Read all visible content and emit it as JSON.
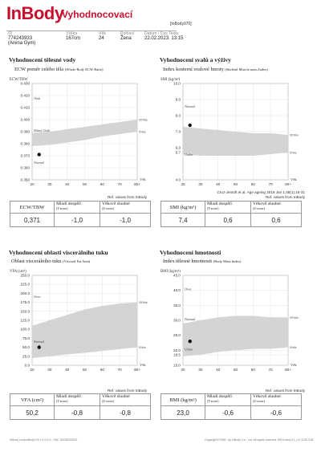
{
  "header": {
    "logo": "InBody",
    "title": "Vyhodnocovací",
    "model": "[InBody970]",
    "fields": [
      {
        "label": "ID",
        "value": "774243933",
        "extra": "(Arena Gym)"
      },
      {
        "label": "Výška",
        "value": "167cm"
      },
      {
        "label": "Věk",
        "value": "24"
      },
      {
        "label": "Pohlaví",
        "value": "Žena"
      },
      {
        "label": "Datum / Čas Testu",
        "value": "22.02.2023. 13:15"
      }
    ]
  },
  "sections": {
    "ecw": {
      "title": "Vyhodnocení tělesné vody",
      "subtitle": "ECW poměr celého těla",
      "subtitle_en": "(Whole Body ECW Ratio)",
      "table": {
        "col1": "ECW/TBW",
        "col2": "Mladí dospělí",
        "col2_en": "(T-score)",
        "col3": "Věkově shodné",
        "col3_en": "(Z-score)",
        "v1": "0,371",
        "v2": "-1,0",
        "v3": "-1,0"
      },
      "ref": "Ref. values from InBody"
    },
    "smi": {
      "title": "Vyhodnocení svalů a výživy",
      "subtitle": "Index kosterní svalové hmoty",
      "subtitle_en": "(Skeletal Muscle mass Index)",
      "citation": "Cruz-Jentoft et al. Age ageing 2019 Jan 1;48(1):16-31",
      "table": {
        "col1": "SMI (kg/m²)",
        "col2": "Mladí dospělí",
        "col2_en": "(T-score)",
        "col3": "Věkově shodné",
        "col3_en": "(Z-score)",
        "v1": "7,4",
        "v2": "0,6",
        "v3": "0,6"
      },
      "ref": "Ref. values from InBody"
    },
    "vfa": {
      "title": "Vyhodnocení oblasti viscerálního tuku",
      "subtitle": "Oblast viscerálního tuku",
      "subtitle_en": "(Visceral Fat Area)",
      "table": {
        "col1": "VFA (cm²)",
        "col2": "Mladí dospělí",
        "col2_en": "(T-score)",
        "col3": "Věkově shodné",
        "col3_en": "(Z-score)",
        "v1": "50,2",
        "v2": "-0,8",
        "v3": "-0,8"
      },
      "ref": "Ref. values from InBody"
    },
    "bmi": {
      "title": "Vyhodnocení hmotnosti",
      "subtitle": "Index tělesné hmotnosti",
      "subtitle_en": "(Body Mass Index)",
      "table": {
        "col1": "BMI (kg/m²)",
        "col2": "Mladí dospělí",
        "col2_en": "(T-score)",
        "col3": "Věkově shodné",
        "col3_en": "(Z-score)",
        "v1": "23,0",
        "v2": "-0,6",
        "v3": "-0,6"
      },
      "ref": "Ref. values from InBody"
    }
  },
  "chart_data": [
    {
      "type": "area",
      "ylabel": "ECW/TBW",
      "xlabel": "Věk",
      "x_ticks": [
        "20",
        "30",
        "40",
        "50",
        "60",
        "70",
        "80+"
      ],
      "y_ticks": [
        "0.350",
        "0.360",
        "0.370",
        "0.380",
        "0.390",
        "0.400",
        "0.410",
        "0.420",
        "0.430"
      ],
      "ylim": [
        0.35,
        0.43
      ],
      "zones": [
        "Otok",
        "Mírný Otok",
        "Normal"
      ],
      "band_labels": [
        "50%ile",
        "5%ile"
      ],
      "band_upper": [
        [
          20,
          0.389
        ],
        [
          30,
          0.39
        ],
        [
          40,
          0.392
        ],
        [
          50,
          0.394
        ],
        [
          60,
          0.396
        ],
        [
          70,
          0.398
        ],
        [
          80,
          0.4
        ]
      ],
      "band_lower": [
        [
          20,
          0.378
        ],
        [
          30,
          0.379
        ],
        [
          40,
          0.381
        ],
        [
          50,
          0.383
        ],
        [
          60,
          0.386
        ],
        [
          70,
          0.388
        ],
        [
          80,
          0.39
        ]
      ],
      "point": {
        "x": 24,
        "y": 0.371
      }
    },
    {
      "type": "area",
      "ylabel": "SMI (kg/m²)",
      "xlabel": "Věk",
      "x_ticks": [
        "20",
        "30",
        "40",
        "50",
        "60",
        "70",
        "80+"
      ],
      "y_ticks": [
        "4.0",
        "5.7",
        "6.0",
        "7.0",
        "8.0",
        "9.0",
        "10.0"
      ],
      "ylim": [
        4.0,
        10.0
      ],
      "zones": [
        "Normal",
        "Under"
      ],
      "band_labels": [
        "95%ile",
        "5%ile"
      ],
      "band_upper": [
        [
          20,
          7.3
        ],
        [
          30,
          7.2
        ],
        [
          40,
          7.1
        ],
        [
          50,
          7.0
        ],
        [
          60,
          6.9
        ],
        [
          70,
          6.9
        ],
        [
          80,
          6.8
        ]
      ],
      "band_lower": [
        [
          20,
          5.6
        ],
        [
          30,
          5.5
        ],
        [
          40,
          5.5
        ],
        [
          50,
          5.5
        ],
        [
          60,
          5.5
        ],
        [
          70,
          5.6
        ],
        [
          80,
          5.7
        ]
      ],
      "point": {
        "x": 24,
        "y": 7.4
      }
    },
    {
      "type": "area",
      "ylabel": "VFA (cm²)",
      "xlabel": "Věk",
      "x_ticks": [
        "20",
        "30",
        "40",
        "50",
        "60",
        "70",
        "80+"
      ],
      "y_ticks": [
        "0.0",
        "25.0",
        "50.0",
        "75.0",
        "100.0",
        "125.0",
        "150.0",
        "175.0",
        "200.0",
        "225.0",
        "250.0"
      ],
      "ylim": [
        0,
        250
      ],
      "zones": [
        "Over",
        "Normal"
      ],
      "band_labels": [
        "95%ile",
        "5%ile"
      ],
      "band_upper": [
        [
          20,
          110
        ],
        [
          30,
          125
        ],
        [
          40,
          140
        ],
        [
          50,
          155
        ],
        [
          60,
          165
        ],
        [
          70,
          172
        ],
        [
          80,
          175
        ]
      ],
      "band_lower": [
        [
          20,
          20
        ],
        [
          30,
          25
        ],
        [
          40,
          30
        ],
        [
          50,
          35
        ],
        [
          60,
          40
        ],
        [
          70,
          45
        ],
        [
          80,
          50
        ]
      ],
      "point": {
        "x": 24,
        "y": 50.2
      }
    },
    {
      "type": "area",
      "ylabel": "BMI (kg/m²)",
      "xlabel": "Věk",
      "x_ticks": [
        "20",
        "30",
        "40",
        "50",
        "60",
        "70",
        "80+"
      ],
      "y_ticks": [
        "15.0",
        "18.5",
        "20.0",
        "25.0",
        "30.0",
        "35.0",
        "40.0",
        "45.0"
      ],
      "ylim": [
        15.0,
        45.0
      ],
      "zones": [
        "Over",
        "Normal",
        "Under"
      ],
      "band_labels": [
        "95%ile",
        "5%ile"
      ],
      "band_upper": [
        [
          20,
          29
        ],
        [
          30,
          30
        ],
        [
          40,
          31
        ],
        [
          50,
          31.5
        ],
        [
          60,
          31.5
        ],
        [
          70,
          31
        ],
        [
          80,
          31
        ]
      ],
      "band_lower": [
        [
          20,
          18
        ],
        [
          30,
          18.5
        ],
        [
          40,
          19.5
        ],
        [
          50,
          20
        ],
        [
          60,
          20.5
        ],
        [
          70,
          20.5
        ],
        [
          80,
          21
        ]
      ],
      "point": {
        "x": 24,
        "y": 23.0
      }
    }
  ],
  "footer": {
    "left": "InBody LookinBody120 V1.0.0.0 - SW: 16235000024",
    "right": "Copyright©1996~ by InBody Co., Ltd. All rights reserved. BR-Korea-41_LH-1105-21B"
  },
  "colors": {
    "brand": "#c8102e",
    "band": "#cfcfcf",
    "band_dark": "#a8a8a8",
    "bg_band": "#f2f2f2"
  }
}
